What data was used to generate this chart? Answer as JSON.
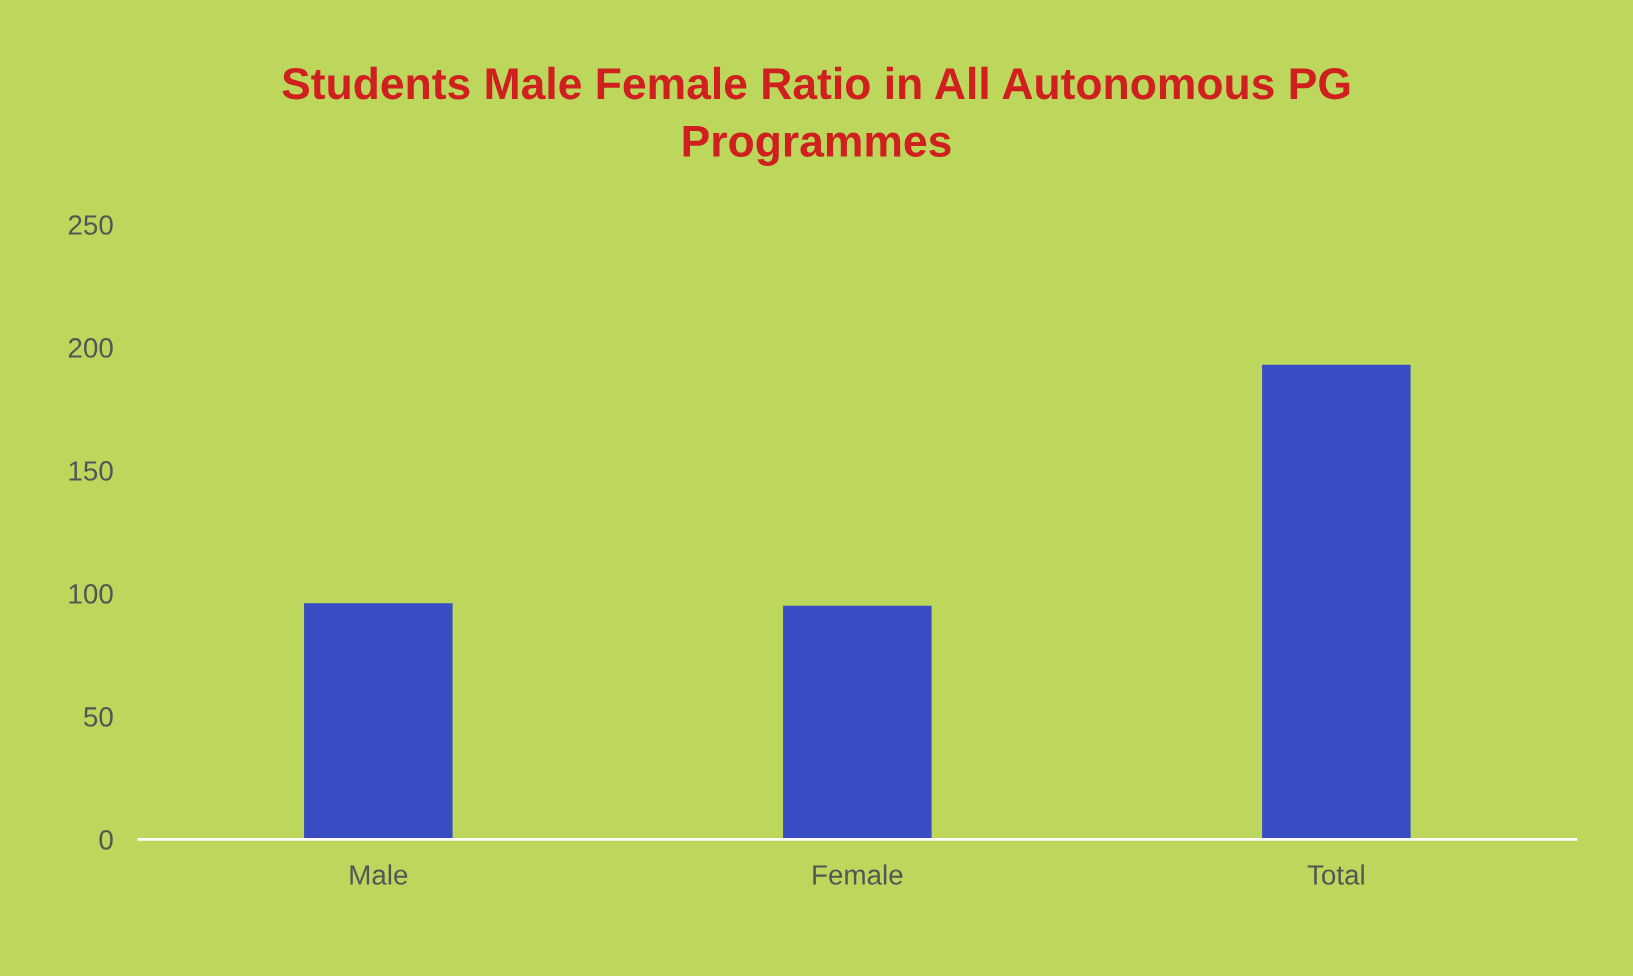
{
  "chart_data": {
    "type": "bar",
    "title": "Students Male Female Ratio in All Autonomous PG\nProgrammes",
    "categories": [
      "Male",
      "Female",
      "Total"
    ],
    "values": [
      96,
      95,
      193
    ],
    "color": "#3a4cc4",
    "ylim": [
      0,
      250
    ],
    "yticks": [
      0,
      50,
      100,
      150,
      200,
      250
    ],
    "grid": false
  }
}
